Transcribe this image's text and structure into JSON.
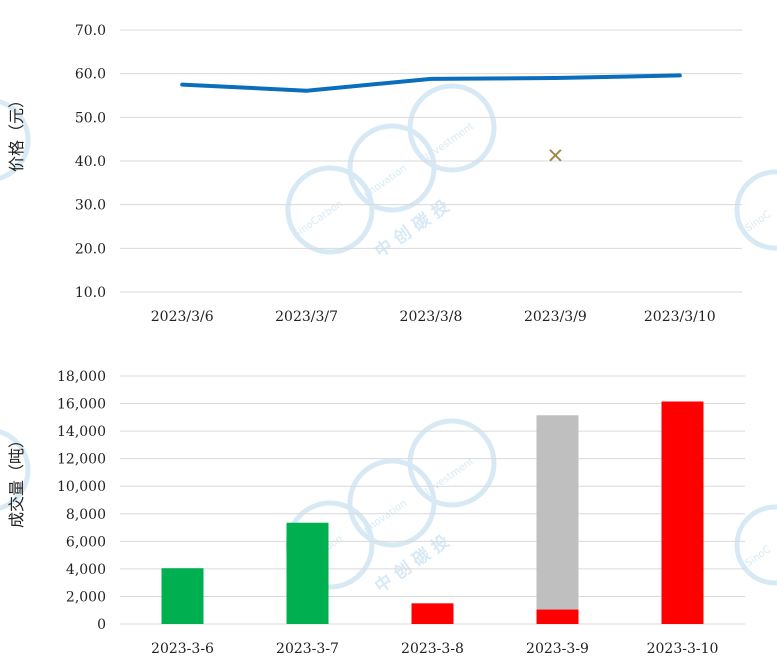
{
  "chart_data": [
    {
      "type": "line",
      "ylabel": "价格（元）",
      "xlabel": "",
      "title": "",
      "categories": [
        "2023/3/6",
        "2023/3/7",
        "2023/3/8",
        "2023/3/9",
        "2023/3/10"
      ],
      "series": [
        {
          "values": [
            57.5,
            56.1,
            58.8,
            59.0,
            59.6
          ],
          "color": "#0a6ebd"
        },
        {
          "marker": "x",
          "values": [
            null,
            null,
            null,
            41.3,
            null
          ],
          "color": "#9c8a4a"
        }
      ],
      "yticks": [
        "10.0",
        "20.0",
        "30.0",
        "40.0",
        "50.0",
        "60.0",
        "70.0"
      ],
      "ylim": [
        10,
        70
      ],
      "grid": true,
      "legend": "none"
    },
    {
      "type": "bar",
      "stacked": true,
      "ylabel": "成交量（吨）",
      "xlabel": "",
      "title": "",
      "categories": [
        "2023-3-6",
        "2023-3-7",
        "2023-3-8",
        "2023-3-9",
        "2023-3-10"
      ],
      "series": [
        {
          "values": [
            4050,
            7350,
            0,
            0,
            0
          ],
          "color": "#00b050"
        },
        {
          "values": [
            0,
            0,
            1500,
            1050,
            16150
          ],
          "color": "#ff0000"
        },
        {
          "values": [
            0,
            0,
            0,
            14100,
            0
          ],
          "color": "#bfbfbf"
        }
      ],
      "yticks": [
        "0",
        "2,000",
        "4,000",
        "6,000",
        "8,000",
        "10,000",
        "12,000",
        "14,000",
        "16,000",
        "18,000"
      ],
      "ylim": [
        0,
        18000
      ],
      "grid": true,
      "legend": "none"
    }
  ],
  "watermark": {
    "brand_cn": "中 创 碳 投",
    "brand_en_1": "SinoCarbon",
    "brand_en_2": "Innovation",
    "brand_en_3": "Investment",
    "brand_en_edge": "SinoC"
  }
}
